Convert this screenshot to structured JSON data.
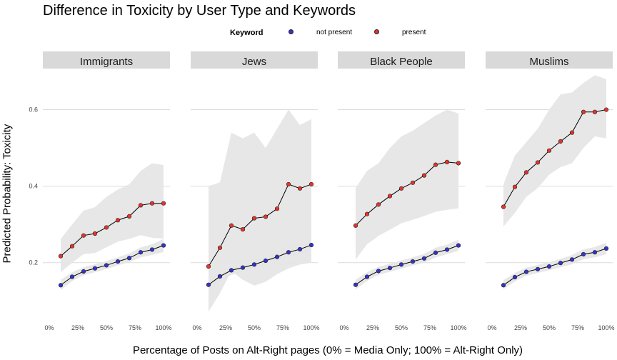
{
  "title": "Difference in Toxicity by User Type and Keywords",
  "legend": {
    "title": "Keyword",
    "items": [
      {
        "label": "not present",
        "color": "#3333cc"
      },
      {
        "label": "present",
        "color": "#e6332a"
      }
    ]
  },
  "chart_data": {
    "type": "line",
    "title": "Difference in Toxicity by User Type and Keywords",
    "xlabel": "Percentage of Posts on Alt-Right pages (0% = Media Only; 100% = Alt-Right Only)",
    "ylabel": "Predicted Probability: Toxicity",
    "x_ticks": [
      "0%",
      "25%",
      "50%",
      "75%",
      "100%"
    ],
    "y_ticks": [
      "0.2",
      "0.4",
      "0.6"
    ],
    "xlim": [
      0,
      1
    ],
    "ylim": [
      0.05,
      0.7
    ],
    "grid": true,
    "legend_position": "top",
    "x": [
      0.1,
      0.2,
      0.3,
      0.4,
      0.5,
      0.6,
      0.7,
      0.8,
      0.9,
      1.0
    ],
    "panels": [
      {
        "facet": "Immigrants",
        "series": [
          {
            "name": "not present",
            "values": [
              0.141,
              0.163,
              0.177,
              0.185,
              0.193,
              0.203,
              0.212,
              0.227,
              0.234,
              0.245
            ],
            "lower": [
              0.128,
              0.152,
              0.167,
              0.175,
              0.183,
              0.193,
              0.201,
              0.214,
              0.22,
              0.228
            ],
            "upper": [
              0.155,
              0.175,
              0.188,
              0.196,
              0.204,
              0.214,
              0.224,
              0.24,
              0.248,
              0.262
            ]
          },
          {
            "name": "present",
            "values": [
              0.217,
              0.243,
              0.271,
              0.276,
              0.292,
              0.311,
              0.321,
              0.35,
              0.355,
              0.355
            ],
            "lower": [
              0.175,
              0.2,
              0.222,
              0.225,
              0.24,
              0.255,
              0.262,
              0.272,
              0.265,
              0.263
            ],
            "upper": [
              0.262,
              0.3,
              0.336,
              0.345,
              0.372,
              0.391,
              0.405,
              0.44,
              0.46,
              0.455
            ]
          }
        ]
      },
      {
        "facet": "Jews",
        "series": [
          {
            "name": "not present",
            "values": [
              0.142,
              0.164,
              0.18,
              0.187,
              0.195,
              0.205,
              0.215,
              0.227,
              0.235,
              0.246
            ],
            "lower": [
              0.128,
              0.152,
              0.168,
              0.176,
              0.184,
              0.194,
              0.203,
              0.214,
              0.222,
              0.231
            ],
            "upper": [
              0.156,
              0.177,
              0.192,
              0.199,
              0.207,
              0.217,
              0.228,
              0.241,
              0.249,
              0.262
            ]
          },
          {
            "name": "present",
            "values": [
              0.19,
              0.239,
              0.297,
              0.287,
              0.316,
              0.32,
              0.341,
              0.405,
              0.394,
              0.405
            ],
            "lower": [
              0.072,
              0.12,
              0.178,
              0.155,
              0.14,
              0.15,
              0.17,
              0.185,
              0.195,
              0.2
            ],
            "upper": [
              0.4,
              0.41,
              0.54,
              0.525,
              0.54,
              0.5,
              0.55,
              0.6,
              0.56,
              0.575
            ]
          }
        ]
      },
      {
        "facet": "Black People",
        "series": [
          {
            "name": "not present",
            "values": [
              0.142,
              0.163,
              0.178,
              0.186,
              0.195,
              0.203,
              0.211,
              0.226,
              0.234,
              0.245
            ],
            "lower": [
              0.13,
              0.152,
              0.168,
              0.176,
              0.184,
              0.193,
              0.2,
              0.214,
              0.222,
              0.231
            ],
            "upper": [
              0.155,
              0.175,
              0.189,
              0.197,
              0.206,
              0.214,
              0.223,
              0.239,
              0.247,
              0.26
            ]
          },
          {
            "name": "present",
            "values": [
              0.297,
              0.327,
              0.352,
              0.374,
              0.394,
              0.409,
              0.428,
              0.456,
              0.463,
              0.46
            ],
            "lower": [
              0.208,
              0.248,
              0.27,
              0.286,
              0.303,
              0.312,
              0.322,
              0.333,
              0.338,
              0.342
            ],
            "upper": [
              0.395,
              0.44,
              0.46,
              0.5,
              0.53,
              0.545,
              0.565,
              0.585,
              0.6,
              0.59
            ]
          }
        ]
      },
      {
        "facet": "Muslims",
        "series": [
          {
            "name": "not present",
            "values": [
              0.141,
              0.162,
              0.176,
              0.183,
              0.19,
              0.199,
              0.208,
              0.222,
              0.227,
              0.237
            ],
            "lower": [
              0.13,
              0.151,
              0.166,
              0.173,
              0.18,
              0.188,
              0.196,
              0.209,
              0.214,
              0.222
            ],
            "upper": [
              0.154,
              0.173,
              0.187,
              0.194,
              0.201,
              0.21,
              0.22,
              0.235,
              0.241,
              0.252
            ]
          },
          {
            "name": "present",
            "values": [
              0.346,
              0.398,
              0.436,
              0.462,
              0.493,
              0.517,
              0.54,
              0.594,
              0.594,
              0.6
            ],
            "lower": [
              0.295,
              0.33,
              0.372,
              0.395,
              0.43,
              0.45,
              0.46,
              0.5,
              0.53,
              0.525
            ],
            "upper": [
              0.405,
              0.48,
              0.515,
              0.55,
              0.6,
              0.64,
              0.645,
              0.67,
              0.69,
              0.68
            ]
          }
        ]
      }
    ]
  }
}
